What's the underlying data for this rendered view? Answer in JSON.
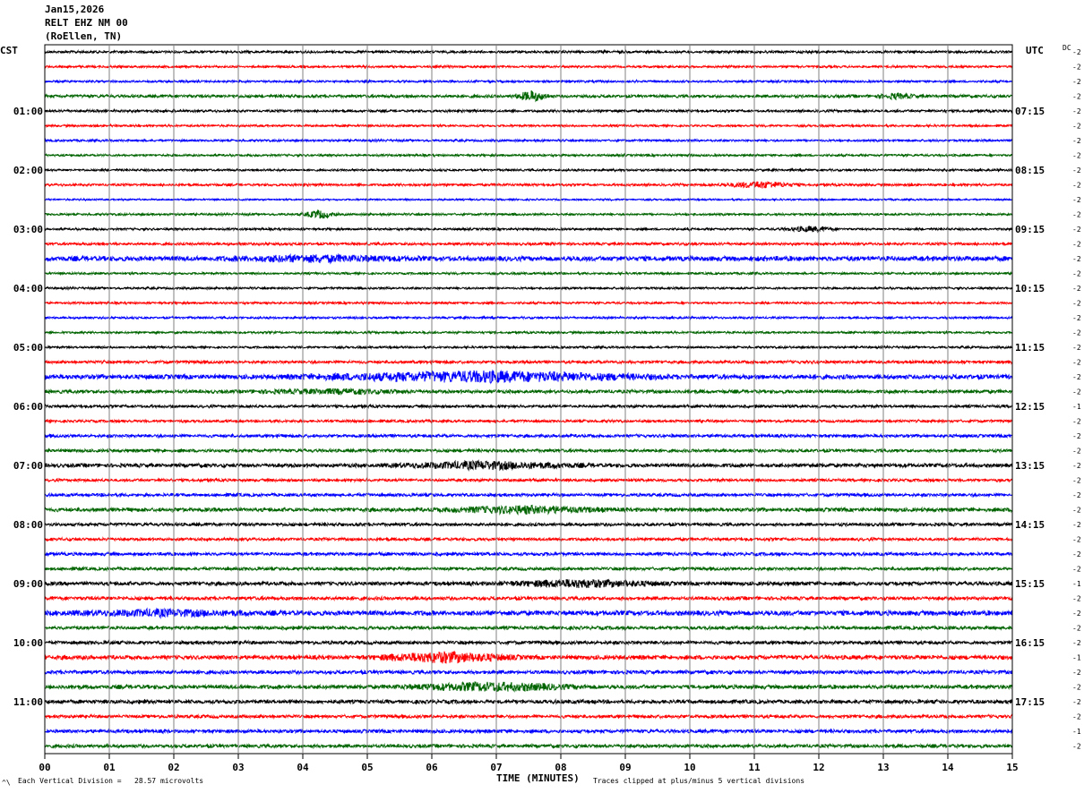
{
  "header": {
    "date": "Jan15,2026",
    "station": "RELT EHZ NM 00",
    "location": "(RoEllen, TN)"
  },
  "left_axis_label": "CST",
  "right_axis_label": "UTC",
  "dc_label": "DC",
  "footer": {
    "scale_note": "Each Vertical Division =   28.57 microvolts",
    "clip_note": "Traces clipped at plus/minus 5 vertical divisions",
    "corner_mark": "^\\"
  },
  "colors": {
    "black": "#000000",
    "red": "#ff0000",
    "blue": "#0000ff",
    "green": "#006400",
    "grid": "#808080"
  },
  "chart_data": {
    "type": "line",
    "title": "",
    "xlabel": "TIME (MINUTES)",
    "xlim": [
      0,
      15
    ],
    "x_ticks": [
      "00",
      "01",
      "02",
      "03",
      "04",
      "05",
      "06",
      "07",
      "08",
      "09",
      "10",
      "11",
      "12",
      "13",
      "14",
      "15"
    ],
    "trace_count": 48,
    "trace_color_cycle": [
      "black",
      "red",
      "blue",
      "green"
    ],
    "left_time_labels": [
      {
        "trace": 4,
        "label": "01:00"
      },
      {
        "trace": 8,
        "label": "02:00"
      },
      {
        "trace": 12,
        "label": "03:00"
      },
      {
        "trace": 16,
        "label": "04:00"
      },
      {
        "trace": 20,
        "label": "05:00"
      },
      {
        "trace": 24,
        "label": "06:00"
      },
      {
        "trace": 28,
        "label": "07:00"
      },
      {
        "trace": 32,
        "label": "08:00"
      },
      {
        "trace": 36,
        "label": "09:00"
      },
      {
        "trace": 40,
        "label": "10:00"
      },
      {
        "trace": 44,
        "label": "11:00"
      }
    ],
    "right_time_labels": [
      {
        "trace": 4,
        "label": "07:15"
      },
      {
        "trace": 8,
        "label": "08:15"
      },
      {
        "trace": 12,
        "label": "09:15"
      },
      {
        "trace": 16,
        "label": "10:15"
      },
      {
        "trace": 20,
        "label": "11:15"
      },
      {
        "trace": 24,
        "label": "12:15"
      },
      {
        "trace": 28,
        "label": "13:15"
      },
      {
        "trace": 32,
        "label": "14:15"
      },
      {
        "trace": 36,
        "label": "15:15"
      },
      {
        "trace": 40,
        "label": "16:15"
      },
      {
        "trace": 44,
        "label": "17:15"
      }
    ],
    "dc_offsets": [
      "-2",
      "-2",
      "-2",
      "-2",
      "-2",
      "-2",
      "-2",
      "-2",
      "-2",
      "-2",
      "-2",
      "-2",
      "-2",
      "-2",
      "-2",
      "-2",
      "-2",
      "-2",
      "-2",
      "-2",
      "-2",
      "-2",
      "-2",
      "-2",
      "-1",
      "-2",
      "-2",
      "-2",
      "-2",
      "-2",
      "-2",
      "-2",
      "-2",
      "-2",
      "-2",
      "-2",
      "-1",
      "-2",
      "-2",
      "-2",
      "-2",
      "-1",
      "-2",
      "-2",
      "-2",
      "-2",
      "-1",
      "-2"
    ],
    "base_amplitude": [
      1.2,
      1.0,
      1.0,
      1.5,
      1.2,
      1.0,
      1.0,
      1.0,
      1.0,
      1.2,
      0.8,
      1.0,
      1.0,
      1.3,
      2.6,
      1.0,
      1.0,
      1.0,
      1.0,
      1.0,
      1.0,
      1.5,
      2.4,
      1.8,
      1.4,
      1.3,
      1.6,
      1.6,
      2.0,
      1.4,
      1.6,
      2.0,
      1.6,
      1.5,
      1.7,
      1.6,
      2.0,
      1.8,
      2.6,
      1.8,
      1.8,
      2.2,
      1.9,
      2.1,
      2.0,
      1.7,
      1.8,
      1.8
    ],
    "events": [
      {
        "trace": 3,
        "start": 7.2,
        "end": 7.9,
        "amp": 5
      },
      {
        "trace": 3,
        "start": 12.8,
        "end": 13.6,
        "amp": 2.5
      },
      {
        "trace": 9,
        "start": 10.4,
        "end": 11.8,
        "amp": 3.5
      },
      {
        "trace": 11,
        "start": 3.9,
        "end": 4.6,
        "amp": 4
      },
      {
        "trace": 12,
        "start": 11.3,
        "end": 12.4,
        "amp": 2.5
      },
      {
        "trace": 14,
        "start": 2.5,
        "end": 6.0,
        "amp": 2.5
      },
      {
        "trace": 22,
        "start": 3.5,
        "end": 10.0,
        "amp": 5
      },
      {
        "trace": 23,
        "start": 3.0,
        "end": 6.0,
        "amp": 2
      },
      {
        "trace": 28,
        "start": 5.0,
        "end": 8.6,
        "amp": 3.5
      },
      {
        "trace": 31,
        "start": 5.8,
        "end": 9.0,
        "amp": 3.5
      },
      {
        "trace": 36,
        "start": 6.8,
        "end": 9.8,
        "amp": 3.5
      },
      {
        "trace": 38,
        "start": 0.0,
        "end": 3.5,
        "amp": 2.5
      },
      {
        "trace": 41,
        "start": 4.9,
        "end": 7.5,
        "amp": 5
      },
      {
        "trace": 43,
        "start": 5.2,
        "end": 8.6,
        "amp": 4
      }
    ]
  }
}
